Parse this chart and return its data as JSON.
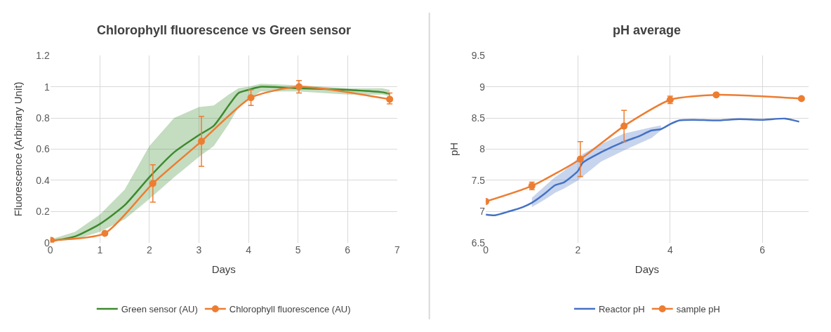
{
  "chart_data": [
    {
      "type": "line",
      "title": "Chlorophyll fluorescence vs Green sensor",
      "xlabel": "Days",
      "ylabel": "Fluorescence (Arbitrary Unit)",
      "xlim": [
        0,
        7
      ],
      "xticks": [
        0,
        1,
        2,
        3,
        4,
        5,
        6,
        7
      ],
      "ylim": [
        0,
        1.2
      ],
      "yticks": [
        0,
        0.2,
        0.4,
        0.6,
        0.8,
        1,
        1.2
      ],
      "grid": true,
      "legend": "bottom",
      "series": [
        {
          "name": "Green sensor (AU)",
          "color": "#3d8a2e",
          "marker": "none",
          "x": [
            0,
            0.5,
            1,
            1.5,
            2,
            2.5,
            3,
            3.3,
            3.6,
            3.8,
            4,
            4.25,
            5,
            6,
            6.7,
            6.85
          ],
          "values": [
            0.01,
            0.04,
            0.12,
            0.24,
            0.42,
            0.58,
            0.69,
            0.75,
            0.88,
            0.96,
            0.98,
            1.0,
            0.99,
            0.98,
            0.965,
            0.955
          ],
          "lower": [
            0.01,
            0.02,
            0.07,
            0.15,
            0.28,
            0.42,
            0.55,
            0.62,
            0.76,
            0.87,
            0.92,
            0.97,
            0.97,
            0.95,
            0.95,
            0.94
          ],
          "upper": [
            0.02,
            0.07,
            0.18,
            0.34,
            0.62,
            0.8,
            0.87,
            0.88,
            0.95,
            0.99,
            1.0,
            1.02,
            1.01,
            0.99,
            0.99,
            0.98
          ]
        },
        {
          "name": "Chlorophyll fluorescence (AU)",
          "color": "#ed7d31",
          "marker": "circle",
          "x": [
            0.02,
            1.1,
            2.07,
            3.05,
            4.05,
            5.02,
            6.85
          ],
          "values": [
            0.015,
            0.06,
            0.38,
            0.65,
            0.93,
            1.0,
            0.92
          ],
          "errors": [
            null,
            null,
            [
              0.26,
              0.5
            ],
            [
              0.49,
              0.81
            ],
            [
              0.88,
              0.98
            ],
            [
              0.96,
              1.04
            ],
            [
              0.89,
              0.96
            ]
          ]
        }
      ]
    },
    {
      "type": "line",
      "title": "pH average",
      "xlabel": "Days",
      "ylabel": "pH",
      "xlim": [
        0,
        7
      ],
      "xticks": [
        0,
        2,
        4,
        6
      ],
      "ylim": [
        6.5,
        9.5
      ],
      "yticks": [
        6.5,
        7,
        7.5,
        8,
        8.5,
        9,
        9.5
      ],
      "grid": true,
      "legend": "bottom",
      "series": [
        {
          "name": "Reactor pH",
          "color": "#4472c4",
          "marker": "none",
          "x": [
            0,
            0.2,
            0.5,
            0.8,
            1,
            1.3,
            1.5,
            1.7,
            2,
            2.1,
            2.5,
            3,
            3.3,
            3.6,
            3.8,
            4,
            4.2,
            4.5,
            5,
            5.5,
            6,
            6.5,
            6.8
          ],
          "values": [
            6.95,
            6.94,
            7.0,
            7.07,
            7.14,
            7.3,
            7.42,
            7.47,
            7.65,
            7.78,
            7.95,
            8.12,
            8.2,
            8.3,
            8.32,
            8.4,
            8.46,
            8.47,
            8.46,
            8.48,
            8.47,
            8.49,
            8.44
          ],
          "lower": [
            null,
            null,
            null,
            null,
            7.07,
            7.2,
            7.3,
            7.37,
            7.5,
            7.56,
            7.8,
            7.98,
            8.08,
            8.18,
            8.3,
            null,
            null,
            null,
            null,
            null,
            null,
            null,
            null
          ],
          "upper": [
            null,
            null,
            null,
            null,
            7.22,
            7.42,
            7.55,
            7.65,
            7.85,
            7.92,
            8.08,
            8.25,
            8.3,
            8.35,
            8.38,
            null,
            null,
            null,
            null,
            null,
            null,
            null,
            null
          ]
        },
        {
          "name": "sample pH",
          "color": "#ed7d31",
          "marker": "circle",
          "x": [
            0,
            1,
            2.05,
            3,
            4,
            5,
            6.85
          ],
          "values": [
            7.16,
            7.41,
            7.84,
            8.37,
            8.79,
            8.87,
            8.81
          ],
          "errors": [
            null,
            [
              7.35,
              7.47
            ],
            [
              7.56,
              8.12
            ],
            [
              8.12,
              8.62
            ],
            [
              8.73,
              8.85
            ],
            null,
            null
          ]
        }
      ]
    }
  ]
}
